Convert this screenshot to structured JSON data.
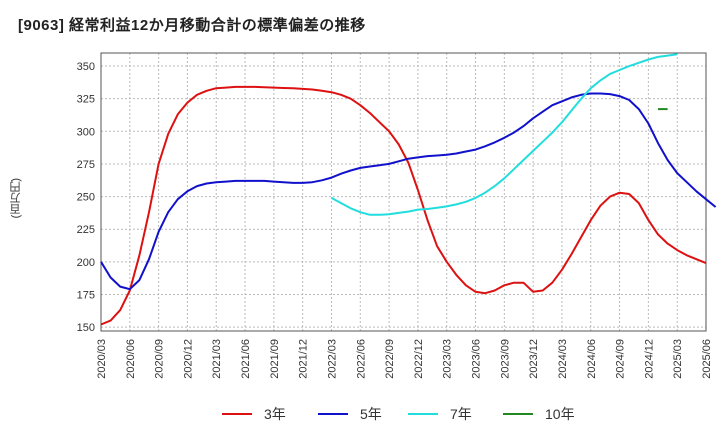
{
  "title": "[9063]  経常利益12か月移動合計の標準偏差の推移",
  "y_unit_label": "(百万円)",
  "chart_data": {
    "type": "line",
    "title": "[9063]  経常利益12か月移動合計の標準偏差の推移",
    "ylabel": "(百万円)",
    "xlabel": "",
    "x_ticks": [
      "2020/03",
      "2020/06",
      "2020/09",
      "2020/12",
      "2021/03",
      "2021/06",
      "2021/09",
      "2021/12",
      "2022/03",
      "2022/06",
      "2022/09",
      "2022/12",
      "2023/03",
      "2023/06",
      "2023/09",
      "2023/12",
      "2024/03",
      "2024/06",
      "2024/09",
      "2024/12",
      "2025/03",
      "2025/06"
    ],
    "y_ticks": [
      150,
      175,
      200,
      225,
      250,
      275,
      300,
      325,
      350
    ],
    "ylim": [
      147,
      360
    ],
    "grid": true,
    "legend_position": "bottom",
    "series": [
      {
        "name": "3年",
        "color": "#dd1111",
        "start": "2020/03",
        "values": [
          152,
          155,
          163,
          178,
          205,
          238,
          275,
          298,
          313,
          322,
          328,
          331,
          333,
          333.5,
          334,
          334,
          334,
          333.8,
          333.5,
          333.2,
          333,
          332.5,
          332,
          331,
          330,
          328,
          325,
          320,
          314,
          307,
          300,
          290,
          276,
          255,
          232,
          212,
          200,
          190,
          182,
          177,
          176,
          178,
          182,
          184,
          184,
          177,
          178,
          184,
          194,
          206,
          219,
          232,
          243,
          250,
          253,
          252,
          245,
          232,
          221,
          214,
          209,
          205,
          202,
          199
        ]
      },
      {
        "name": "5年",
        "color": "#1111cc",
        "start": "2020/03",
        "values": [
          200,
          188,
          181,
          179,
          186,
          202,
          223,
          238,
          248,
          254,
          258,
          260,
          261,
          261.5,
          262,
          262,
          262,
          262,
          261.5,
          261,
          260.5,
          260.5,
          261,
          262.5,
          264.5,
          267.5,
          270,
          272,
          273,
          274,
          275,
          277,
          279,
          280,
          281,
          281.5,
          282,
          283,
          284.5,
          286,
          288.5,
          291.5,
          295,
          299,
          304,
          310,
          315,
          320,
          323,
          326,
          328,
          329,
          329,
          328.5,
          327,
          324,
          317,
          306,
          291,
          278,
          268,
          261,
          254,
          248,
          242
        ]
      },
      {
        "name": "7年",
        "color": "#22dddd",
        "start": "2022/03",
        "values": [
          249,
          245,
          241,
          238,
          236,
          236,
          236.5,
          237.5,
          238.5,
          240,
          240.5,
          241.5,
          242.5,
          244,
          246,
          249,
          253,
          258,
          264,
          271,
          278,
          285,
          292,
          299,
          307,
          316,
          325,
          333,
          339,
          344,
          347,
          350,
          352.5,
          355,
          357,
          358,
          359
        ]
      },
      {
        "name": "10年",
        "color": "#228822",
        "start": "2025/01",
        "values": [
          317,
          317
        ]
      }
    ]
  }
}
